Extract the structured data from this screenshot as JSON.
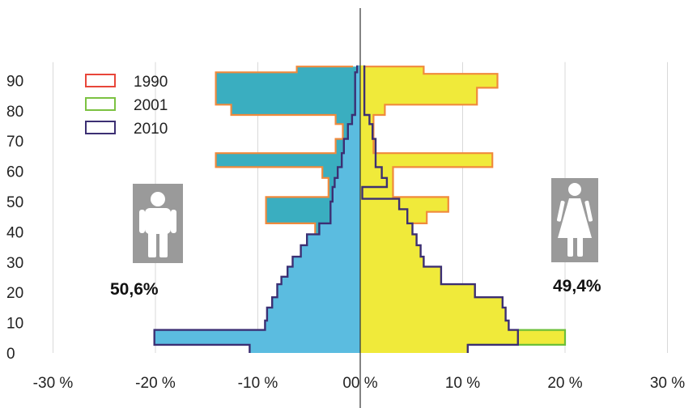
{
  "chart_data": {
    "type": "population-pyramid",
    "colors": {
      "left_fill": "#5bbce0",
      "left_cap_fill": "#3aaec0",
      "right_fill": "#f0ea3a",
      "outline_1990": "#f08a3c",
      "outline_2001": "#6cbf3a",
      "outline_2010": "#3c2f73",
      "icon_bg": "#9a9a9a",
      "icon_fg": "#ffffff"
    },
    "x_ticks": [
      {
        "value": -30,
        "label": "-30 %"
      },
      {
        "value": -20,
        "label": "-20 %"
      },
      {
        "value": -10,
        "label": "-10 %"
      },
      {
        "value": 0,
        "label": "00 %"
      },
      {
        "value": 10,
        "label": "10 %"
      },
      {
        "value": 20,
        "label": "20 %"
      },
      {
        "value": 30,
        "label": "30 %"
      }
    ],
    "y_ticks": [
      {
        "value": 0,
        "label": "0"
      },
      {
        "value": 10,
        "label": "10"
      },
      {
        "value": 20,
        "label": "20"
      },
      {
        "value": 30,
        "label": "30"
      },
      {
        "value": 40,
        "label": "40"
      },
      {
        "value": 50,
        "label": "50"
      },
      {
        "value": 60,
        "label": "60"
      },
      {
        "value": 70,
        "label": "70"
      },
      {
        "value": 80,
        "label": "80"
      },
      {
        "value": 90,
        "label": "90"
      }
    ],
    "xlim": [
      -30,
      30
    ],
    "ylim": [
      0,
      95
    ],
    "grid": "vertical",
    "legend": {
      "placement": "top-left",
      "items": [
        {
          "label": "1990",
          "color": "#e8463a"
        },
        {
          "label": "2001",
          "color": "#7cc242"
        },
        {
          "label": "2010",
          "color": "#3c2f73"
        }
      ]
    },
    "male_share_label": "50,6%",
    "female_share_label": "49,4%",
    "male_icon": "male-person-icon",
    "female_icon": "female-person-icon",
    "series": [
      {
        "label": "1990",
        "side": "male",
        "steps": [
          [
            -14.1,
            82
          ],
          [
            -12.6,
            82
          ],
          [
            -12.6,
            78.6
          ],
          [
            -2.4,
            78.6
          ],
          [
            -2.4,
            75.6
          ],
          [
            -1.7,
            75.6
          ],
          [
            -1.7,
            70.7
          ],
          [
            -2.4,
            70.7
          ],
          [
            -2.4,
            66
          ],
          [
            -14.1,
            66
          ],
          [
            -14.1,
            61.4
          ],
          [
            -3.7,
            61.4
          ],
          [
            -3.7,
            57.8
          ],
          [
            -3.1,
            57.8
          ],
          [
            -3.1,
            51.5
          ],
          [
            -9.2,
            51.5
          ],
          [
            -9.2,
            42.8
          ],
          [
            -4.4,
            42.8
          ],
          [
            -4.4,
            39.2
          ],
          [
            -4.0,
            39.2
          ]
        ],
        "cap": [
          [
            -0.7,
            94.6
          ],
          [
            -6.2,
            94.6
          ],
          [
            -6.2,
            92.7
          ],
          [
            -14.1,
            92.7
          ]
        ]
      },
      {
        "label": "1990",
        "side": "female",
        "steps": [
          [
            0.5,
            94.6
          ],
          [
            6.2,
            94.6
          ],
          [
            6.2,
            92.2
          ],
          [
            13.4,
            92.2
          ],
          [
            13.4,
            87.6
          ],
          [
            11.4,
            87.6
          ],
          [
            11.4,
            82
          ],
          [
            2.4,
            82
          ],
          [
            2.4,
            78.6
          ],
          [
            1.3,
            78.6
          ],
          [
            1.3,
            66
          ],
          [
            12.9,
            66
          ],
          [
            12.9,
            61.4
          ],
          [
            3.2,
            61.4
          ],
          [
            3.2,
            51.5
          ],
          [
            8.6,
            51.5
          ],
          [
            8.6,
            46.6
          ],
          [
            6.5,
            46.6
          ],
          [
            6.5,
            42.8
          ],
          [
            5.1,
            42.8
          ]
        ]
      },
      {
        "label": "2001",
        "side": "female",
        "steps": [
          [
            15.4,
            7.6
          ],
          [
            20.0,
            7.6
          ],
          [
            20.0,
            2.7
          ],
          [
            10.5,
            2.7
          ]
        ]
      },
      {
        "label": "2010",
        "side": "male",
        "points": [
          [
            0,
            95
          ],
          [
            -0.3,
            95
          ],
          [
            -0.3,
            92.7
          ],
          [
            -0.5,
            92.7
          ],
          [
            -0.5,
            78.6
          ],
          [
            -0.8,
            78.6
          ],
          [
            -0.8,
            75.6
          ],
          [
            -1.2,
            75.6
          ],
          [
            -1.2,
            70.7
          ],
          [
            -1.6,
            70.7
          ],
          [
            -1.6,
            66
          ],
          [
            -1.8,
            66
          ],
          [
            -1.8,
            61.4
          ],
          [
            -2.2,
            61.4
          ],
          [
            -2.2,
            57.8
          ],
          [
            -2.5,
            57.8
          ],
          [
            -2.5,
            54.8
          ],
          [
            -2.7,
            54.8
          ],
          [
            -2.7,
            50
          ],
          [
            -2.9,
            50
          ],
          [
            -2.9,
            42.8
          ],
          [
            -4.0,
            42.8
          ],
          [
            -4.0,
            39.2
          ],
          [
            -5.2,
            39.2
          ],
          [
            -5.2,
            35.6
          ],
          [
            -5.8,
            35.6
          ],
          [
            -5.8,
            31.8
          ],
          [
            -6.6,
            31.8
          ],
          [
            -6.6,
            28.5
          ],
          [
            -7.1,
            28.5
          ],
          [
            -7.1,
            25.2
          ],
          [
            -7.7,
            25.2
          ],
          [
            -7.7,
            22.7
          ],
          [
            -8.1,
            22.7
          ],
          [
            -8.1,
            18.4
          ],
          [
            -8.6,
            18.4
          ],
          [
            -8.6,
            15
          ],
          [
            -9.1,
            15
          ],
          [
            -9.1,
            10.7
          ],
          [
            -9.3,
            10.7
          ],
          [
            -9.3,
            7.6
          ],
          [
            -20.1,
            7.6
          ],
          [
            -20.1,
            2.7
          ],
          [
            -10.8,
            2.7
          ],
          [
            -10.8,
            0
          ],
          [
            0,
            0
          ]
        ]
      },
      {
        "label": "2010",
        "side": "female",
        "points": [
          [
            0,
            95
          ],
          [
            0.4,
            95
          ],
          [
            0.4,
            78.6
          ],
          [
            0.9,
            78.6
          ],
          [
            0.9,
            75.6
          ],
          [
            1.2,
            75.6
          ],
          [
            1.2,
            70.7
          ],
          [
            1.5,
            70.7
          ],
          [
            1.5,
            61.4
          ],
          [
            2.1,
            61.4
          ],
          [
            2.1,
            57.8
          ],
          [
            2.6,
            57.8
          ],
          [
            2.6,
            54.8
          ],
          [
            0.2,
            54.8
          ],
          [
            0.2,
            50.9
          ],
          [
            3.8,
            50.9
          ],
          [
            3.8,
            47.5
          ],
          [
            4.6,
            47.5
          ],
          [
            4.6,
            42.8
          ],
          [
            5.1,
            42.8
          ],
          [
            5.1,
            39.2
          ],
          [
            5.5,
            39.2
          ],
          [
            5.5,
            35.6
          ],
          [
            5.9,
            35.6
          ],
          [
            5.9,
            31.8
          ],
          [
            6.2,
            31.8
          ],
          [
            6.2,
            28.5
          ],
          [
            7.9,
            28.5
          ],
          [
            7.9,
            22.7
          ],
          [
            11.2,
            22.7
          ],
          [
            11.2,
            18.4
          ],
          [
            13.9,
            18.4
          ],
          [
            13.9,
            15
          ],
          [
            14.2,
            15
          ],
          [
            14.2,
            10.7
          ],
          [
            14.5,
            10.7
          ],
          [
            14.5,
            7.6
          ],
          [
            15.4,
            7.6
          ],
          [
            15.4,
            2.7
          ],
          [
            10.5,
            2.7
          ],
          [
            10.5,
            0
          ],
          [
            0,
            0
          ]
        ]
      }
    ]
  }
}
